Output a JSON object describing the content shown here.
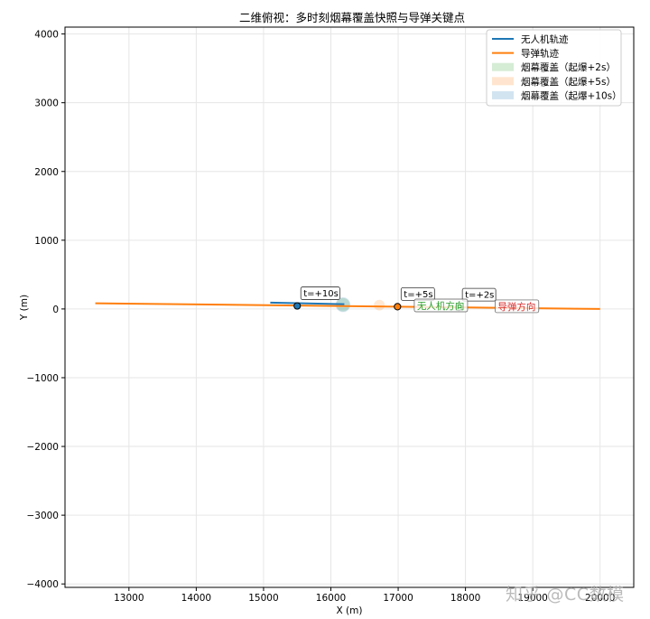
{
  "chart_data": {
    "type": "line",
    "title": "二维俯视：多时刻烟幕覆盖快照与导弹关键点",
    "xlabel": "X (m)",
    "ylabel": "Y (m)",
    "xlim": [
      12050,
      20500
    ],
    "ylim": [
      -4050,
      4100
    ],
    "xticks": [
      13000,
      14000,
      15000,
      16000,
      17000,
      18000,
      19000,
      20000
    ],
    "yticks": [
      -4000,
      -3000,
      -2000,
      -1000,
      0,
      1000,
      2000,
      3000,
      4000
    ],
    "grid": true,
    "legend_position": "top-right",
    "series": [
      {
        "name": "无人机轨迹",
        "color": "#1f77b4",
        "x": [
          15100,
          16200
        ],
        "y": [
          92,
          70
        ]
      },
      {
        "name": "导弹轨迹",
        "color": "#ff7f0e",
        "x": [
          12500,
          20000
        ],
        "y": [
          83,
          0
        ]
      }
    ],
    "smoke_patches": [
      {
        "name": "烟幕覆盖（起爆+2s）",
        "color": "#2ca02c",
        "x": 16180,
        "y": 62,
        "radius_m": 100
      },
      {
        "name": "烟幕覆盖（起爆+5s）",
        "color": "#ff7f0e",
        "x": 16720,
        "y": 55,
        "radius_m": 80
      },
      {
        "name": "烟幕覆盖（起爆+10s）",
        "color": "#1f77b4",
        "x": 16180,
        "y": 62,
        "radius_m": 110
      }
    ],
    "key_points": [
      {
        "label": "t=+10s",
        "x": 15500,
        "y": 44,
        "color": "#1f77b4"
      },
      {
        "label": "t=+5s",
        "x": 16990,
        "y": 33,
        "color": "#ff7f0e"
      },
      {
        "label": "t=+2s",
        "x": 17900,
        "y": 23,
        "color": "#2ca02c"
      }
    ],
    "direction_labels": [
      {
        "text": "无人机方向",
        "x": 17280,
        "y": 64,
        "color": "#2ca02c"
      },
      {
        "text": "导弹方向",
        "x": 18480,
        "y": 52,
        "color": "#d62728"
      }
    ]
  },
  "watermark": "知乎 @CC数模"
}
